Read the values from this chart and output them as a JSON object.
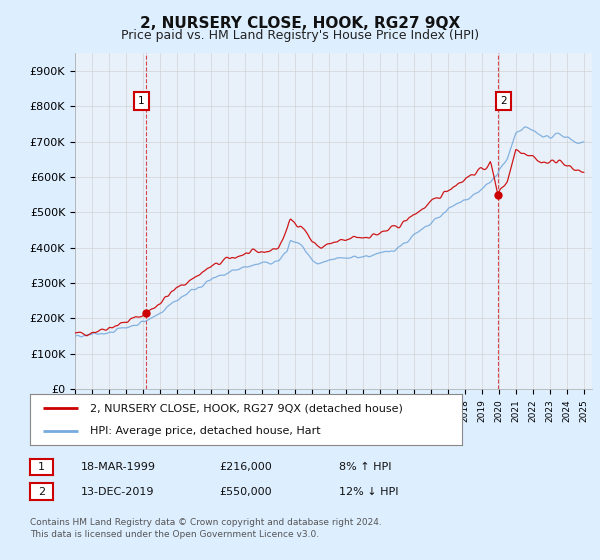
{
  "title": "2, NURSERY CLOSE, HOOK, RG27 9QX",
  "subtitle": "Price paid vs. HM Land Registry's House Price Index (HPI)",
  "legend_line1": "2, NURSERY CLOSE, HOOK, RG27 9QX (detached house)",
  "legend_line2": "HPI: Average price, detached house, Hart",
  "annotation1_label": "1",
  "annotation1_date": "18-MAR-1999",
  "annotation1_price": "£216,000",
  "annotation1_hpi": "8% ↑ HPI",
  "annotation1_year": 1999.21,
  "annotation1_value": 216000,
  "annotation2_label": "2",
  "annotation2_date": "13-DEC-2019",
  "annotation2_price": "£550,000",
  "annotation2_hpi": "12% ↓ HPI",
  "annotation2_year": 2019.95,
  "annotation2_value": 550000,
  "footer": "Contains HM Land Registry data © Crown copyright and database right 2024.\nThis data is licensed under the Open Government Licence v3.0.",
  "ylim": [
    0,
    950000
  ],
  "yticks": [
    0,
    100000,
    200000,
    300000,
    400000,
    500000,
    600000,
    700000,
    800000,
    900000
  ],
  "ytick_labels": [
    "£0",
    "£100K",
    "£200K",
    "£300K",
    "£400K",
    "£500K",
    "£600K",
    "£700K",
    "£800K",
    "£900K"
  ],
  "red_color": "#cc0000",
  "blue_color": "#77aadd",
  "grid_color": "#cccccc",
  "bg_color": "#ddeeff",
  "plot_bg": "#e8f0fa",
  "title_fontsize": 11,
  "subtitle_fontsize": 9,
  "red_nodes_x": [
    1995.0,
    1995.5,
    1996.0,
    1996.5,
    1997.0,
    1997.5,
    1998.0,
    1998.5,
    1999.0,
    1999.21,
    1999.5,
    2000.0,
    2000.5,
    2001.0,
    2001.5,
    2002.0,
    2002.5,
    2003.0,
    2003.5,
    2004.0,
    2004.5,
    2005.0,
    2005.5,
    2006.0,
    2006.5,
    2007.0,
    2007.5,
    2007.7,
    2008.0,
    2008.3,
    2008.7,
    2009.0,
    2009.5,
    2010.0,
    2010.5,
    2011.0,
    2011.5,
    2012.0,
    2012.5,
    2013.0,
    2013.5,
    2014.0,
    2014.5,
    2015.0,
    2015.5,
    2016.0,
    2016.5,
    2017.0,
    2017.5,
    2018.0,
    2018.5,
    2019.0,
    2019.5,
    2019.95,
    2020.0,
    2020.5,
    2021.0,
    2021.5,
    2022.0,
    2022.5,
    2023.0,
    2023.5,
    2024.0,
    2024.5,
    2025.0
  ],
  "red_nodes_y": [
    155000,
    158000,
    162000,
    168000,
    175000,
    182000,
    190000,
    200000,
    210000,
    216000,
    225000,
    245000,
    265000,
    285000,
    300000,
    315000,
    330000,
    345000,
    355000,
    368000,
    375000,
    382000,
    385000,
    388000,
    392000,
    400000,
    450000,
    480000,
    470000,
    465000,
    440000,
    415000,
    400000,
    410000,
    415000,
    420000,
    430000,
    430000,
    435000,
    440000,
    450000,
    460000,
    475000,
    495000,
    510000,
    525000,
    545000,
    565000,
    580000,
    595000,
    610000,
    620000,
    640000,
    550000,
    560000,
    590000,
    680000,
    670000,
    660000,
    640000,
    640000,
    650000,
    630000,
    620000,
    615000
  ],
  "blue_nodes_x": [
    1995.0,
    1995.5,
    1996.0,
    1996.5,
    1997.0,
    1997.5,
    1998.0,
    1998.5,
    1999.0,
    1999.5,
    2000.0,
    2000.5,
    2001.0,
    2001.5,
    2002.0,
    2002.5,
    2003.0,
    2003.5,
    2004.0,
    2004.5,
    2005.0,
    2005.5,
    2006.0,
    2006.5,
    2007.0,
    2007.5,
    2007.7,
    2008.0,
    2008.3,
    2008.7,
    2009.0,
    2009.3,
    2009.7,
    2010.0,
    2010.5,
    2011.0,
    2011.5,
    2012.0,
    2012.5,
    2013.0,
    2013.5,
    2014.0,
    2014.5,
    2015.0,
    2015.5,
    2016.0,
    2016.5,
    2017.0,
    2017.5,
    2018.0,
    2018.5,
    2019.0,
    2019.5,
    2019.95,
    2020.0,
    2020.5,
    2021.0,
    2021.5,
    2022.0,
    2022.5,
    2023.0,
    2023.5,
    2024.0,
    2024.5,
    2025.0
  ],
  "blue_nodes_y": [
    148000,
    150000,
    153000,
    157000,
    162000,
    168000,
    175000,
    182000,
    190000,
    200000,
    215000,
    235000,
    252000,
    268000,
    282000,
    295000,
    308000,
    318000,
    328000,
    338000,
    345000,
    350000,
    354000,
    358000,
    362000,
    390000,
    420000,
    415000,
    408000,
    385000,
    360000,
    350000,
    355000,
    365000,
    368000,
    370000,
    375000,
    375000,
    378000,
    382000,
    390000,
    400000,
    415000,
    435000,
    450000,
    468000,
    488000,
    508000,
    522000,
    536000,
    550000,
    565000,
    585000,
    610000,
    620000,
    650000,
    720000,
    740000,
    730000,
    720000,
    710000,
    720000,
    715000,
    700000,
    695000
  ]
}
